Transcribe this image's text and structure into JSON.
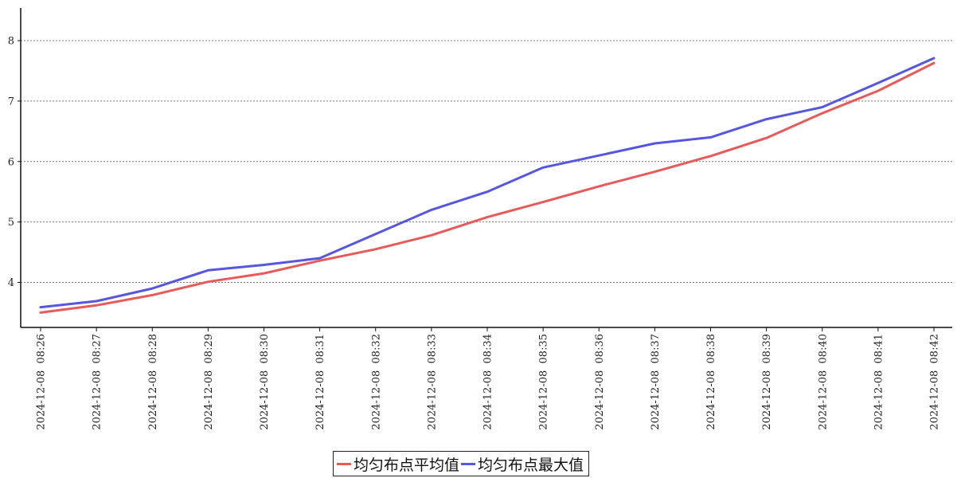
{
  "chart_data": {
    "type": "line",
    "title": "",
    "xlabel": "",
    "ylabel": "",
    "x": [
      "2024-12-08 08:26",
      "2024-12-08 08:27",
      "2024-12-08 08:28",
      "2024-12-08 08:29",
      "2024-12-08 08:30",
      "2024-12-08 08:31",
      "2024-12-08 08:32",
      "2024-12-08 08:33",
      "2024-12-08 08:34",
      "2024-12-08 08:35",
      "2024-12-08 08:36",
      "2024-12-08 08:37",
      "2024-12-08 08:38",
      "2024-12-08 08:39",
      "2024-12-08 08:40",
      "2024-12-08 08:41",
      "2024-12-08 08:42"
    ],
    "yticks": [
      4,
      5,
      6,
      7,
      8
    ],
    "ylim": [
      3.4,
      8.55
    ],
    "grid": "horizontal dotted",
    "legend_position": "bottom-center",
    "series": [
      {
        "name": "均匀布点平均值",
        "color": "#e85a5a",
        "values": [
          3.5,
          3.62,
          3.79,
          4.01,
          4.15,
          4.36,
          4.55,
          4.78,
          5.08,
          5.33,
          5.59,
          5.83,
          6.09,
          6.39,
          6.8,
          7.17,
          7.63
        ]
      },
      {
        "name": "均匀布点最大值",
        "color": "#5656e0",
        "values": [
          3.59,
          3.69,
          3.9,
          4.2,
          4.29,
          4.4,
          4.8,
          5.2,
          5.5,
          5.9,
          6.1,
          6.3,
          6.4,
          6.7,
          6.9,
          7.3,
          7.71
        ]
      }
    ]
  }
}
